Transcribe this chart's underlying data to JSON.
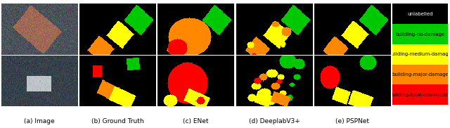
{
  "figure_width": 6.4,
  "figure_height": 1.82,
  "dpi": 100,
  "background_color": "#ffffff",
  "legend_entries": [
    {
      "label": "unlabelled",
      "color": "#000000",
      "text_color": "#ffffff"
    },
    {
      "label": "building-no-damage",
      "color": "#00cc00",
      "text_color": "#000000"
    },
    {
      "label": "building-medium-damage",
      "color": "#ffff00",
      "text_color": "#000000"
    },
    {
      "label": "building-major-damage",
      "color": "#ff8800",
      "text_color": "#000000"
    },
    {
      "label": "building-total-destruction",
      "color": "#ff0000",
      "text_color": "#000000"
    }
  ],
  "panel_labels": [
    "(a) Image",
    "(b) Ground Truth",
    "(c) ENet",
    "(d) DeeplabV3+",
    "(e) PSPNet"
  ],
  "panel_label_fontsize": 6.5,
  "legend_fontsize": 5.0,
  "colors": {
    "black": [
      0,
      0,
      0
    ],
    "green": [
      0,
      200,
      0
    ],
    "yellow": [
      255,
      255,
      0
    ],
    "orange": [
      255,
      136,
      0
    ],
    "red": [
      255,
      0,
      0
    ]
  }
}
